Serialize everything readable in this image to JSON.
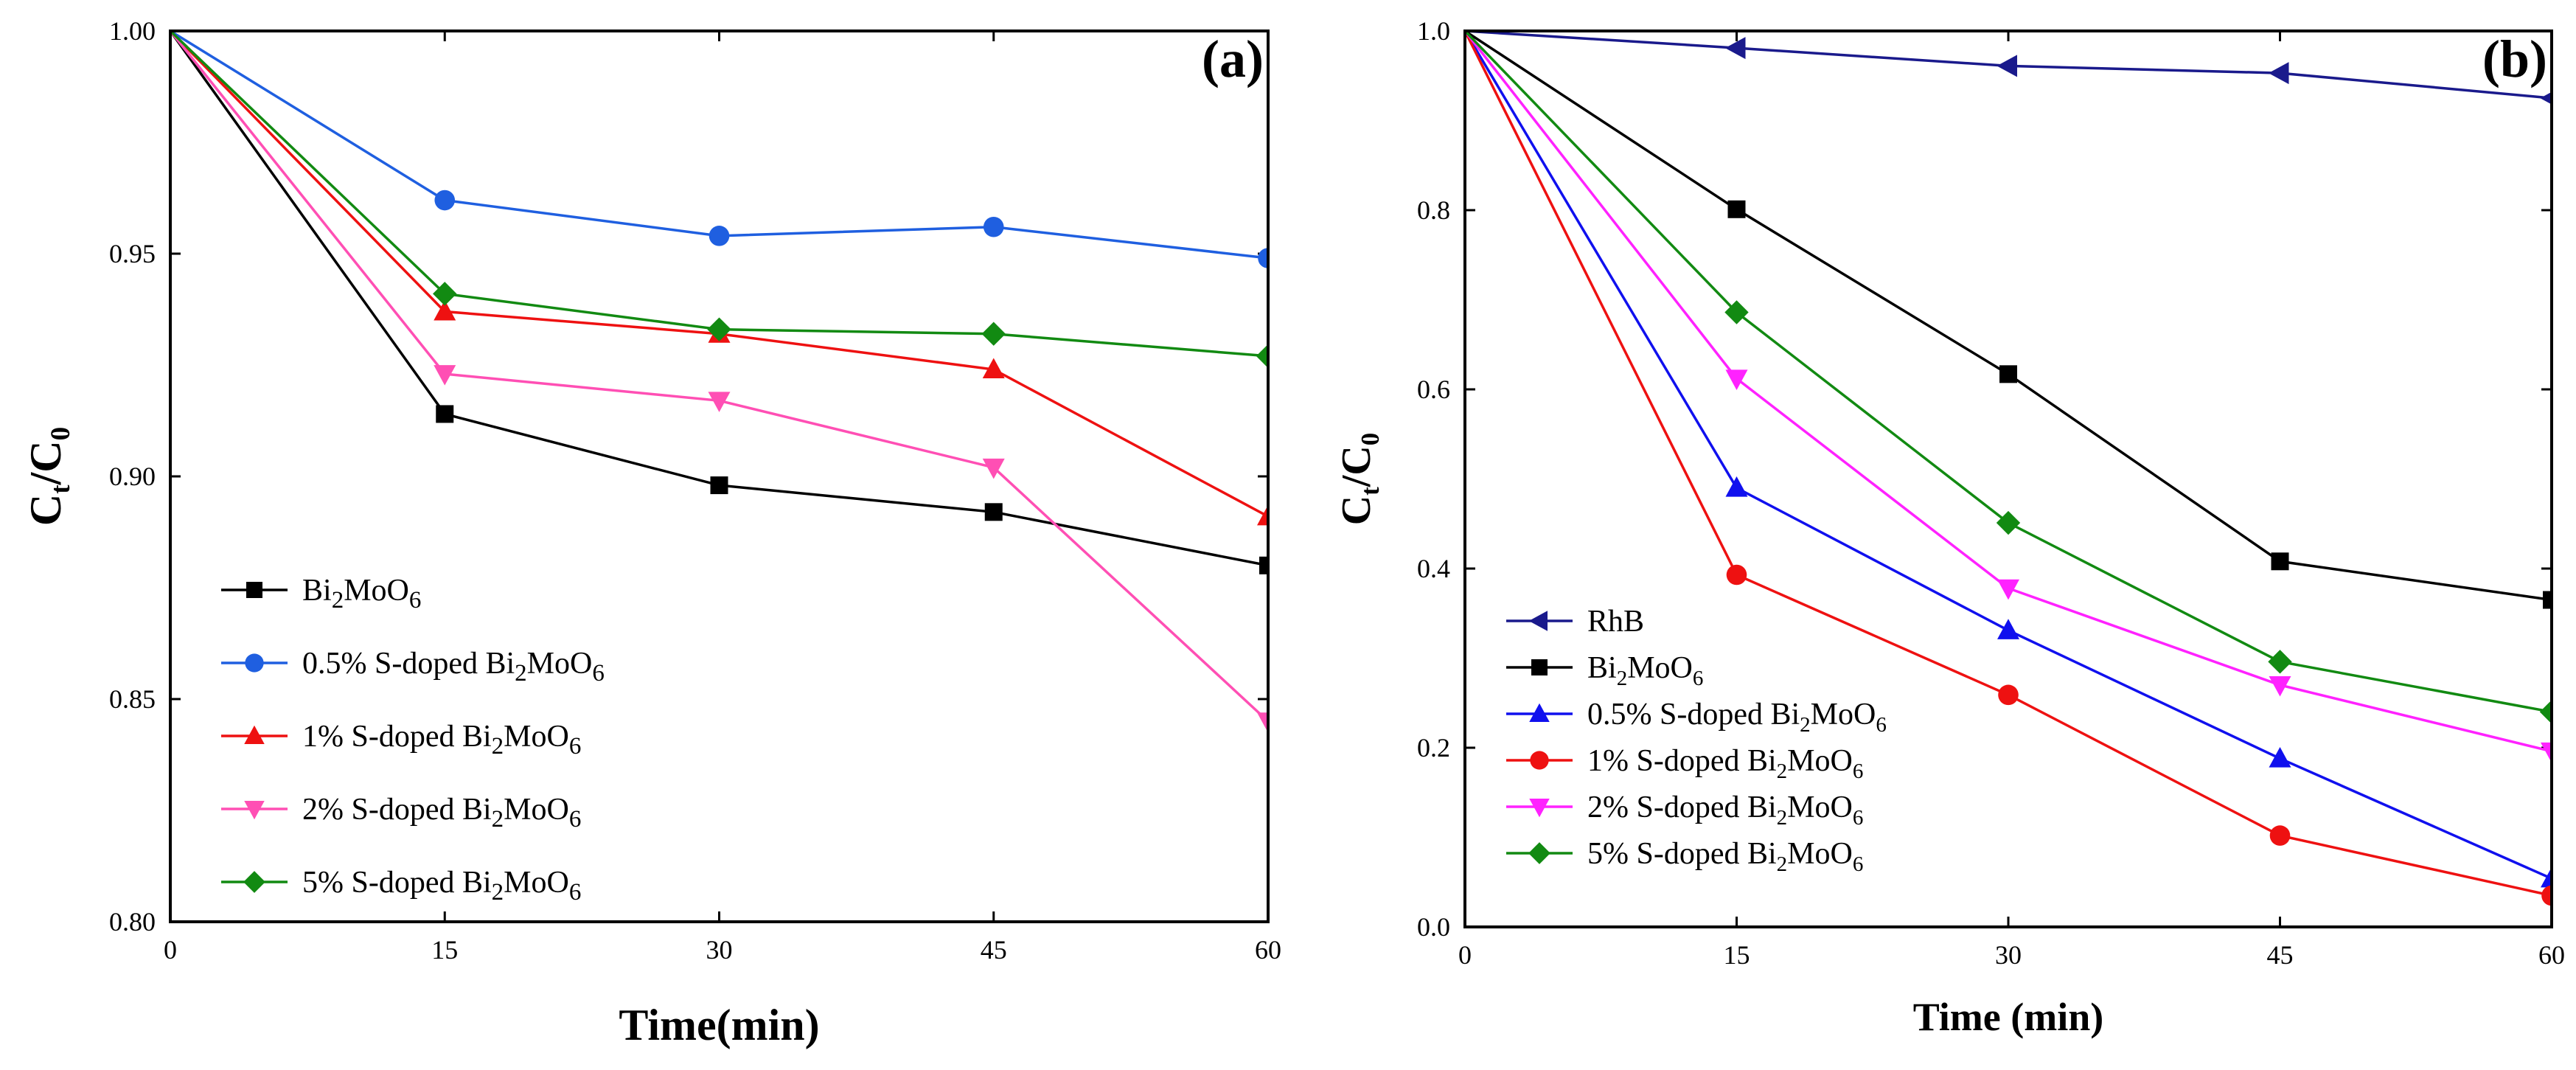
{
  "chart_data": [
    {
      "type": "line",
      "panel_label": "(a)",
      "xlabel": "Time(min)",
      "ylabel_main": "C",
      "ylabel_sub_t": "t",
      "ylabel_slash": "/C",
      "ylabel_sub_0": "0",
      "xlim": [
        0,
        60
      ],
      "ylim": [
        0.8,
        1.0
      ],
      "xticks": [
        "0",
        "15",
        "30",
        "45",
        "60"
      ],
      "yticks": [
        "0.80",
        "0.85",
        "0.90",
        "0.95",
        "1.00"
      ],
      "x": [
        0,
        15,
        30,
        45,
        60
      ],
      "legend_position": "bottom-left",
      "series": [
        {
          "name": "Bi2MoO6",
          "label_parts": [
            "Bi",
            "2",
            "MoO",
            "6"
          ],
          "label_prefix": "",
          "color": "#000000",
          "marker": "square",
          "values": [
            1.0,
            0.914,
            0.898,
            0.892,
            0.88
          ]
        },
        {
          "name": "0.5% S-doped Bi2MoO6",
          "label_prefix": "0.5% S-doped ",
          "label_parts": [
            "Bi",
            "2",
            "MoO",
            "6"
          ],
          "color": "#1f5fe0",
          "marker": "circle",
          "values": [
            1.0,
            0.962,
            0.954,
            0.956,
            0.949
          ]
        },
        {
          "name": "1% S-doped Bi2MoO6",
          "label_prefix": "1% S-doped ",
          "label_parts": [
            "Bi",
            "2",
            "MoO",
            "6"
          ],
          "color": "#ee1111",
          "marker": "triangle-up",
          "values": [
            1.0,
            0.937,
            0.932,
            0.924,
            0.891
          ]
        },
        {
          "name": "2% S-doped Bi2MoO6",
          "label_prefix": "2% S-doped ",
          "label_parts": [
            "Bi",
            "2",
            "MoO",
            "6"
          ],
          "color": "#ff4fb4",
          "marker": "triangle-down",
          "values": [
            1.0,
            0.923,
            0.917,
            0.902,
            0.845
          ]
        },
        {
          "name": "5% S-doped Bi2MoO6",
          "label_prefix": "5% S-doped ",
          "label_parts": [
            "Bi",
            "2",
            "MoO",
            "6"
          ],
          "color": "#128a12",
          "marker": "diamond",
          "values": [
            1.0,
            0.941,
            0.933,
            0.932,
            0.927
          ]
        }
      ]
    },
    {
      "type": "line",
      "panel_label": "(b)",
      "xlabel": "Time (min)",
      "ylabel_main": "C",
      "ylabel_sub_t": "t",
      "ylabel_slash": "/C",
      "ylabel_sub_0": "0",
      "xlim": [
        0,
        60
      ],
      "ylim": [
        0.0,
        1.0
      ],
      "xticks": [
        "0",
        "15",
        "30",
        "45",
        "60"
      ],
      "yticks": [
        "0.0",
        "0.2",
        "0.4",
        "0.6",
        "0.8",
        "1.0"
      ],
      "x": [
        0,
        15,
        30,
        45,
        60
      ],
      "legend_position": "bottom-left",
      "series": [
        {
          "name": "RhB",
          "label_prefix": "RhB",
          "label_parts": [],
          "color": "#1a1a8c",
          "marker": "triangle-left",
          "values": [
            1.0,
            0.981,
            0.961,
            0.953,
            0.925
          ]
        },
        {
          "name": "Bi2MoO6",
          "label_prefix": "",
          "label_parts": [
            "Bi",
            "2",
            "MoO",
            "6"
          ],
          "color": "#000000",
          "marker": "square",
          "values": [
            1.0,
            0.801,
            0.617,
            0.408,
            0.365
          ]
        },
        {
          "name": "0.5% S-doped Bi2MoO6",
          "label_prefix": "0.5% S-doped ",
          "label_parts": [
            "Bi",
            "2",
            "MoO",
            "6"
          ],
          "color": "#1010ee",
          "marker": "triangle-up",
          "values": [
            1.0,
            0.49,
            0.331,
            0.188,
            0.054
          ]
        },
        {
          "name": "1% S-doped Bi2MoO6",
          "label_prefix": "1% S-doped ",
          "label_parts": [
            "Bi",
            "2",
            "MoO",
            "6"
          ],
          "color": "#ee1111",
          "marker": "circle",
          "values": [
            1.0,
            0.393,
            0.259,
            0.102,
            0.035
          ]
        },
        {
          "name": "2% S-doped Bi2MoO6",
          "label_prefix": "2% S-doped ",
          "label_parts": [
            "Bi",
            "2",
            "MoO",
            "6"
          ],
          "color": "#ff22ff",
          "marker": "triangle-down",
          "values": [
            1.0,
            0.612,
            0.378,
            0.27,
            0.196
          ]
        },
        {
          "name": "5% S-doped Bi2MoO6",
          "label_prefix": "5% S-doped ",
          "label_parts": [
            "Bi",
            "2",
            "MoO",
            "6"
          ],
          "color": "#128a12",
          "marker": "diamond",
          "values": [
            1.0,
            0.686,
            0.451,
            0.296,
            0.24
          ]
        }
      ]
    }
  ]
}
